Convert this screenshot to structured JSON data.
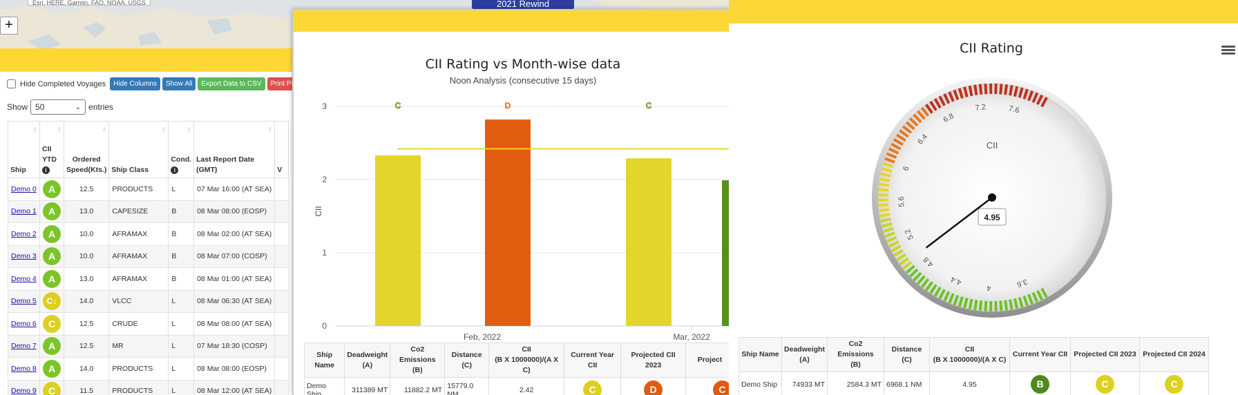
{
  "map": {
    "caption": "Esri, HERE, Garmin, FAO, NOAA, USGS",
    "zoom_in_label": "+",
    "rewind_badge": "2021 Rewind"
  },
  "ship_table": {
    "hide_completed_label": "Hide Completed Voyages",
    "buttons": {
      "hide_columns": "Hide Columns",
      "show_all": "Show All",
      "export_csv": "Export Data to CSV",
      "print_pdf": "Print PDF"
    },
    "show_label": "Show",
    "entries_value": "50",
    "entries_label": "entries",
    "headers": {
      "ship": "Ship",
      "cii_ytd": [
        "CII",
        "YTD"
      ],
      "ordered_speed": [
        "Ordered",
        "Speed(Kts.)"
      ],
      "ship_class": "Ship Class",
      "cond": "Cond.",
      "last_report": [
        "Last Report Date",
        "(GMT)"
      ],
      "next": "V"
    },
    "rows": [
      {
        "ship": "Demo 0",
        "cii": "A",
        "speed": "12.5",
        "class": "PRODUCTS",
        "cond": "L",
        "report": "07 Mar 16:00 (AT SEA)"
      },
      {
        "ship": "Demo 1",
        "cii": "A",
        "speed": "13.0",
        "class": "CAPESIZE",
        "cond": "B",
        "report": "08 Mar 08:00 (EOSP)"
      },
      {
        "ship": "Demo 2",
        "cii": "A",
        "speed": "10.0",
        "class": "AFRAMAX",
        "cond": "B",
        "report": "08 Mar 02:00 (AT SEA)"
      },
      {
        "ship": "Demo 3",
        "cii": "A",
        "speed": "10.0",
        "class": "AFRAMAX",
        "cond": "B",
        "report": "08 Mar 07:00 (COSP)"
      },
      {
        "ship": "Demo 4",
        "cii": "A",
        "speed": "13.0",
        "class": "AFRAMAX",
        "cond": "B",
        "report": "08 Mar 01:00 (AT SEA)"
      },
      {
        "ship": "Demo 5",
        "cii": "C↓",
        "speed": "14.0",
        "class": "VLCC",
        "cond": "L",
        "report": "08 Mar 06:30 (AT SEA)"
      },
      {
        "ship": "Demo 6",
        "cii": "C",
        "speed": "12.5",
        "class": "CRUDE",
        "cond": "L",
        "report": "08 Mar 08:00 (AT SEA)"
      },
      {
        "ship": "Demo 7",
        "cii": "A",
        "speed": "12.5",
        "class": "MR",
        "cond": "L",
        "report": "07 Mar 18:30 (COSP)"
      },
      {
        "ship": "Demo 8",
        "cii": "A",
        "speed": "14.0",
        "class": "PRODUCTS",
        "cond": "L",
        "report": "08 Mar 08:00 (EOSP)"
      },
      {
        "ship": "Demo 9",
        "cii": "C",
        "speed": "11.5",
        "class": "PRODUCTS",
        "cond": "L",
        "report": "08 Mar 12:00 (AT SEA)"
      }
    ]
  },
  "month_chart": {
    "chart_data": {
      "type": "bar",
      "title": "CII Rating vs Month-wise data",
      "subtitle": "Noon Analysis (consecutive 15 days)",
      "ylabel": "CII",
      "ylim": [
        0,
        3
      ],
      "yticks": [
        "0",
        "1",
        "2",
        "3"
      ],
      "categories": [
        "Feb, 2022",
        "Mar, 2022"
      ],
      "bars": [
        {
          "value": 2.33,
          "grade": "C",
          "color": "#e3d52a"
        },
        {
          "value": 2.82,
          "grade": "D",
          "color": "#e35d0e"
        },
        {
          "value": 2.29,
          "grade": "C",
          "color": "#e3d52a"
        },
        {
          "value": 1.99,
          "grade": "",
          "color": "#57901f"
        }
      ],
      "reference_line": 2.42,
      "reference_color": "#e6d82a"
    },
    "table": {
      "headers": [
        "Ship Name",
        "Deadweight\n(A)",
        "Co2 Emissions\n(B)",
        "Distance\n(C)",
        "CII\n(B X 1000000)/(A X C)",
        "Current Year CII",
        "Projected CII 2023",
        "Project"
      ],
      "row": {
        "name": "Demo Ship",
        "dwt": "311389 MT",
        "co2": "11882.2 MT",
        "dist": "15779.0 NM",
        "cii": "2.42",
        "current": "C",
        "p2023": "D",
        "p2024": "C"
      }
    }
  },
  "gauge": {
    "title": "CII Rating",
    "label": "CII",
    "value": 4.95,
    "value_text": "4.95",
    "min": 3.4,
    "max": 7.9,
    "ticks": [
      "3.6",
      "4",
      "4.4",
      "4.8",
      "5.2",
      "5.6",
      "6",
      "6.4",
      "6.8",
      "7.2",
      "7.6"
    ],
    "table": {
      "headers": [
        "Ship Name",
        "Deadweight\n(A)",
        "Co2 Emissions\n(B)",
        "Distance\n(C)",
        "CII\n(B X 1000000)/(A X C)",
        "Current Year CII",
        "Projected CII 2023",
        "Projected CII 2024"
      ],
      "row": {
        "name": "Demo Ship",
        "dwt": "74933 MT",
        "co2": "2584.3 MT",
        "dist": "6968.1 NM",
        "cii": "4.95",
        "current": "B",
        "p2023": "C",
        "p2024": "C"
      }
    }
  }
}
